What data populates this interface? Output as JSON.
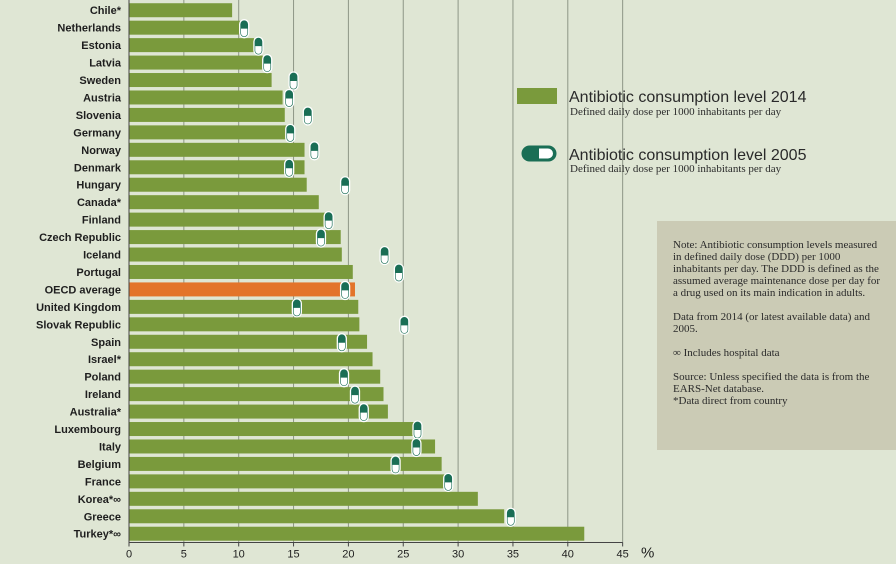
{
  "chart_data": {
    "type": "bar",
    "orientation": "horizontal",
    "categories": [
      "Chile*",
      "Netherlands",
      "Estonia",
      "Latvia",
      "Sweden",
      "Austria",
      "Slovenia",
      "Germany",
      "Norway",
      "Denmark",
      "Hungary",
      "Canada*",
      "Finland",
      "Czech Republic",
      "Iceland",
      "Portugal",
      "OECD average",
      "United Kingdom",
      "Slovak Republic",
      "Spain",
      "Israel*",
      "Poland",
      "Ireland",
      "Australia*",
      "Luxembourg",
      "Italy",
      "Belgium",
      "France",
      "Korea*∞",
      "Greece",
      "Turkey*∞"
    ],
    "series": [
      {
        "name": "Antibiotic consumption level 2014",
        "type": "bar",
        "values": [
          9.4,
          10.2,
          11.4,
          12.2,
          13.0,
          14.0,
          14.2,
          14.6,
          16.0,
          16.0,
          16.2,
          17.3,
          18.0,
          19.3,
          19.4,
          20.4,
          20.6,
          20.9,
          21.0,
          21.7,
          22.2,
          22.9,
          23.2,
          23.6,
          26.0,
          27.9,
          28.5,
          28.9,
          31.8,
          34.2,
          41.5
        ],
        "color": "#7a9a3c",
        "highlight_category": "OECD average",
        "highlight_color": "#e3742a"
      },
      {
        "name": "Antibiotic consumption level 2005",
        "type": "marker",
        "values": [
          null,
          10.5,
          11.8,
          12.6,
          15.0,
          14.6,
          16.3,
          14.7,
          16.9,
          14.6,
          19.7,
          null,
          18.2,
          17.5,
          23.3,
          24.6,
          19.7,
          15.3,
          25.1,
          19.4,
          null,
          19.6,
          20.6,
          21.4,
          26.3,
          26.2,
          24.3,
          29.1,
          null,
          34.8,
          null
        ],
        "color": "#1a6e55"
      }
    ],
    "xlim": [
      0,
      45
    ],
    "xticks": [
      "0",
      "5",
      "10",
      "15",
      "20",
      "25",
      "30",
      "35",
      "40",
      "45"
    ],
    "unit_label": "%",
    "gridlines": "vertical",
    "legend_position": "right",
    "legend": [
      {
        "title": "Antibiotic consumption level 2014",
        "subtitle": "Defined daily dose per 1000 inhabitants per day"
      },
      {
        "title": "Antibiotic consumption level 2005",
        "subtitle": "Defined daily dose per 1000 inhabitants per day"
      }
    ]
  },
  "note": {
    "paragraphs": [
      "Note: Antibiotic consumption levels measured in defined daily dose (DDD) per 1000 inhabitants per day. The DDD is defined as the assumed average maintenance dose per day for a drug used on its main indication in adults.",
      "Data from 2014 (or latest available data) and 2005.",
      "∞ Includes hospital data",
      "Source: Unless specified the data is from the EARS-Net database.\n*Data direct from country"
    ]
  },
  "colors": {
    "background": "#dfe6d4",
    "bar": "#7a9a3c",
    "highlight": "#e3742a",
    "marker": "#1a6e55",
    "note_bg": "#cbcbb5"
  }
}
